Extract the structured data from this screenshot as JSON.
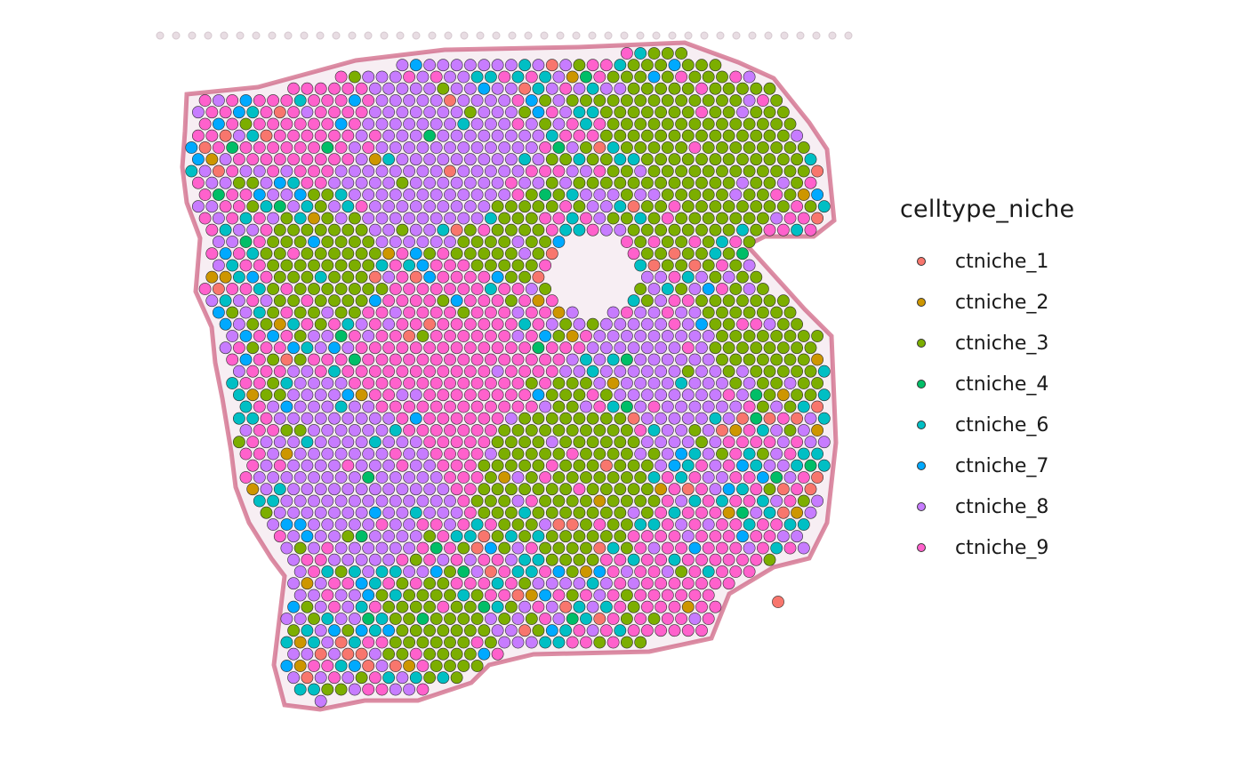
{
  "chart_data": {
    "type": "scatter",
    "title": "",
    "xlabel": "",
    "ylabel": "",
    "grid": false,
    "legend_placement": "right",
    "background": "H&E tissue image",
    "legend": {
      "title": "celltype_niche",
      "entries": [
        {
          "name": "ctniche_1",
          "color": "#F8766D"
        },
        {
          "name": "ctniche_2",
          "color": "#CD9600"
        },
        {
          "name": "ctniche_3",
          "color": "#7CAE00"
        },
        {
          "name": "ctniche_4",
          "color": "#00BE67"
        },
        {
          "name": "ctniche_6",
          "color": "#00BFC4"
        },
        {
          "name": "ctniche_7",
          "color": "#00A9FF"
        },
        {
          "name": "ctniche_8",
          "color": "#C77CFF"
        },
        {
          "name": "ctniche_9",
          "color": "#FF61CC"
        }
      ]
    },
    "regions": [
      {
        "category": "ctniche_3",
        "cx": 0.78,
        "cy": 0.18,
        "r": 0.17,
        "w": 5
      },
      {
        "category": "ctniche_3",
        "cx": 0.88,
        "cy": 0.42,
        "r": 0.12,
        "w": 4
      },
      {
        "category": "ctniche_3",
        "cx": 0.58,
        "cy": 0.63,
        "r": 0.14,
        "w": 5
      },
      {
        "category": "ctniche_3",
        "cx": 0.4,
        "cy": 0.85,
        "r": 0.09,
        "w": 3
      },
      {
        "category": "ctniche_3",
        "cx": 0.24,
        "cy": 0.33,
        "r": 0.09,
        "w": 3
      },
      {
        "category": "ctniche_3",
        "cx": 0.5,
        "cy": 0.3,
        "r": 0.08,
        "w": 2
      },
      {
        "category": "ctniche_4",
        "cx": 0.82,
        "cy": 0.12,
        "r": 0.07,
        "w": 3
      },
      {
        "category": "ctniche_9",
        "cx": 0.42,
        "cy": 0.5,
        "r": 0.18,
        "w": 3
      },
      {
        "category": "ctniche_9",
        "cx": 0.22,
        "cy": 0.13,
        "r": 0.1,
        "w": 3
      },
      {
        "category": "ctniche_9",
        "cx": 0.78,
        "cy": 0.82,
        "r": 0.14,
        "w": 3
      },
      {
        "category": "ctniche_8",
        "cx": 0.4,
        "cy": 0.18,
        "r": 0.15,
        "w": 3
      },
      {
        "category": "ctniche_8",
        "cx": 0.3,
        "cy": 0.62,
        "r": 0.15,
        "w": 3
      },
      {
        "category": "ctniche_8",
        "cx": 0.72,
        "cy": 0.48,
        "r": 0.12,
        "w": 2
      }
    ],
    "holes": [
      {
        "cx": 0.62,
        "cy": 0.35,
        "r": 0.06
      }
    ],
    "mix_weights": {
      "ctniche_1": 0.05,
      "ctniche_2": 0.03,
      "ctniche_3": 0.12,
      "ctniche_4": 0.02,
      "ctniche_6": 0.16,
      "ctniche_7": 0.08,
      "ctniche_8": 0.27,
      "ctniche_9": 0.27
    }
  }
}
